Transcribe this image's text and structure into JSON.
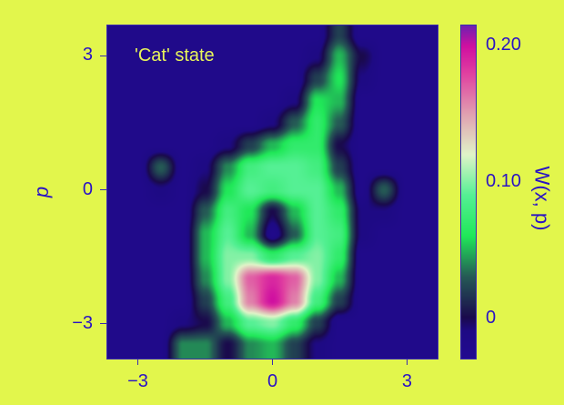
{
  "chart_data": {
    "type": "heatmap",
    "title": "'Cat' state",
    "xlabel": "",
    "ylabel": "p",
    "colorbar_label": "W(x, p)",
    "xlim": [
      -3.7,
      3.7
    ],
    "ylim": [
      -3.8,
      3.7
    ],
    "x_ticks": [
      {
        "value": -3,
        "label": "−3"
      },
      {
        "value": 0,
        "label": "0"
      },
      {
        "value": 3,
        "label": "3"
      }
    ],
    "y_ticks": [
      {
        "value": 3,
        "label": "3"
      },
      {
        "value": 0,
        "label": "0"
      },
      {
        "value": -3,
        "label": "−3"
      }
    ],
    "colorbar_ticks": [
      {
        "value": 0.2,
        "label": "0.20"
      },
      {
        "value": 0.1,
        "label": "0.10"
      },
      {
        "value": 0,
        "label": "0"
      }
    ],
    "colorbar_range": [
      -0.03,
      0.215
    ],
    "colormap": [
      [
        -0.03,
        "#220a90"
      ],
      [
        -0.01,
        "#1e0a84"
      ],
      [
        0.0,
        "#1a0a4c"
      ],
      [
        0.03,
        "#255a55"
      ],
      [
        0.06,
        "#20e858"
      ],
      [
        0.09,
        "#55f094"
      ],
      [
        0.12,
        "#e0f4c8"
      ],
      [
        0.15,
        "#e0a0b0"
      ],
      [
        0.18,
        "#e040a0"
      ],
      [
        0.2,
        "#d010a0"
      ],
      [
        0.215,
        "#7020b0"
      ]
    ],
    "grid_x": [
      -3.5,
      -3,
      -2.5,
      -2,
      -1.5,
      -1,
      -0.5,
      0,
      0.5,
      1,
      1.5,
      2,
      2.5,
      3,
      3.5
    ],
    "grid_p": [
      3.5,
      3,
      2.5,
      2,
      1.5,
      1,
      0.5,
      0,
      -0.5,
      -1,
      -1.5,
      -2,
      -2.5,
      -3,
      -3.5
    ],
    "values": [
      [
        -0.02,
        -0.02,
        -0.02,
        -0.02,
        -0.02,
        -0.02,
        -0.02,
        -0.02,
        -0.02,
        -0.02,
        0.02,
        -0.02,
        -0.02,
        -0.02,
        -0.02
      ],
      [
        -0.02,
        -0.02,
        -0.02,
        -0.02,
        -0.02,
        -0.02,
        -0.02,
        -0.02,
        -0.02,
        -0.01,
        0.05,
        0.0,
        -0.02,
        -0.02,
        -0.02
      ],
      [
        -0.02,
        -0.02,
        -0.02,
        -0.02,
        -0.02,
        -0.02,
        -0.02,
        -0.02,
        -0.02,
        0.02,
        0.06,
        -0.01,
        -0.02,
        -0.02,
        -0.02
      ],
      [
        -0.02,
        -0.02,
        -0.02,
        -0.02,
        -0.02,
        -0.02,
        -0.02,
        -0.02,
        -0.01,
        0.06,
        0.05,
        -0.02,
        -0.02,
        -0.02,
        -0.02
      ],
      [
        -0.02,
        -0.02,
        -0.02,
        -0.02,
        -0.02,
        -0.02,
        -0.02,
        -0.01,
        0.03,
        0.07,
        0.03,
        -0.02,
        -0.02,
        -0.02,
        -0.02
      ],
      [
        -0.02,
        -0.02,
        -0.02,
        -0.02,
        -0.02,
        -0.01,
        0.02,
        0.05,
        0.07,
        0.07,
        0.0,
        -0.02,
        -0.02,
        -0.02,
        -0.02
      ],
      [
        -0.02,
        -0.02,
        0.03,
        -0.02,
        -0.01,
        0.04,
        0.08,
        0.09,
        0.09,
        0.08,
        0.02,
        -0.02,
        -0.02,
        -0.02,
        -0.02
      ],
      [
        -0.02,
        -0.02,
        -0.01,
        -0.02,
        0.0,
        0.06,
        0.09,
        0.08,
        0.09,
        0.09,
        0.05,
        -0.02,
        0.03,
        -0.02,
        -0.02
      ],
      [
        -0.02,
        -0.02,
        -0.02,
        -0.02,
        0.03,
        0.08,
        0.06,
        0.0,
        0.05,
        0.09,
        0.07,
        -0.01,
        -0.01,
        -0.02,
        -0.02
      ],
      [
        -0.02,
        -0.02,
        -0.02,
        -0.02,
        0.05,
        0.09,
        0.05,
        -0.02,
        0.03,
        0.09,
        0.08,
        -0.01,
        -0.02,
        -0.02,
        -0.02
      ],
      [
        -0.02,
        -0.02,
        -0.02,
        -0.02,
        0.05,
        0.1,
        0.1,
        0.07,
        0.09,
        0.1,
        0.07,
        -0.02,
        -0.02,
        -0.02,
        -0.02
      ],
      [
        -0.02,
        -0.02,
        -0.02,
        -0.02,
        0.04,
        0.1,
        0.17,
        0.19,
        0.17,
        0.1,
        0.05,
        -0.02,
        -0.02,
        -0.02,
        -0.02
      ],
      [
        -0.02,
        -0.02,
        -0.02,
        -0.02,
        0.02,
        0.08,
        0.16,
        0.2,
        0.16,
        0.08,
        0.02,
        -0.02,
        -0.02,
        -0.02,
        -0.02
      ],
      [
        -0.02,
        -0.02,
        -0.02,
        -0.01,
        0.0,
        0.05,
        0.09,
        0.1,
        0.07,
        0.02,
        -0.02,
        -0.02,
        -0.02,
        -0.02,
        -0.02
      ],
      [
        -0.02,
        -0.02,
        -0.02,
        0.04,
        0.04,
        0.0,
        0.04,
        0.05,
        0.02,
        -0.01,
        -0.02,
        -0.02,
        -0.02,
        -0.02,
        -0.02
      ]
    ]
  }
}
